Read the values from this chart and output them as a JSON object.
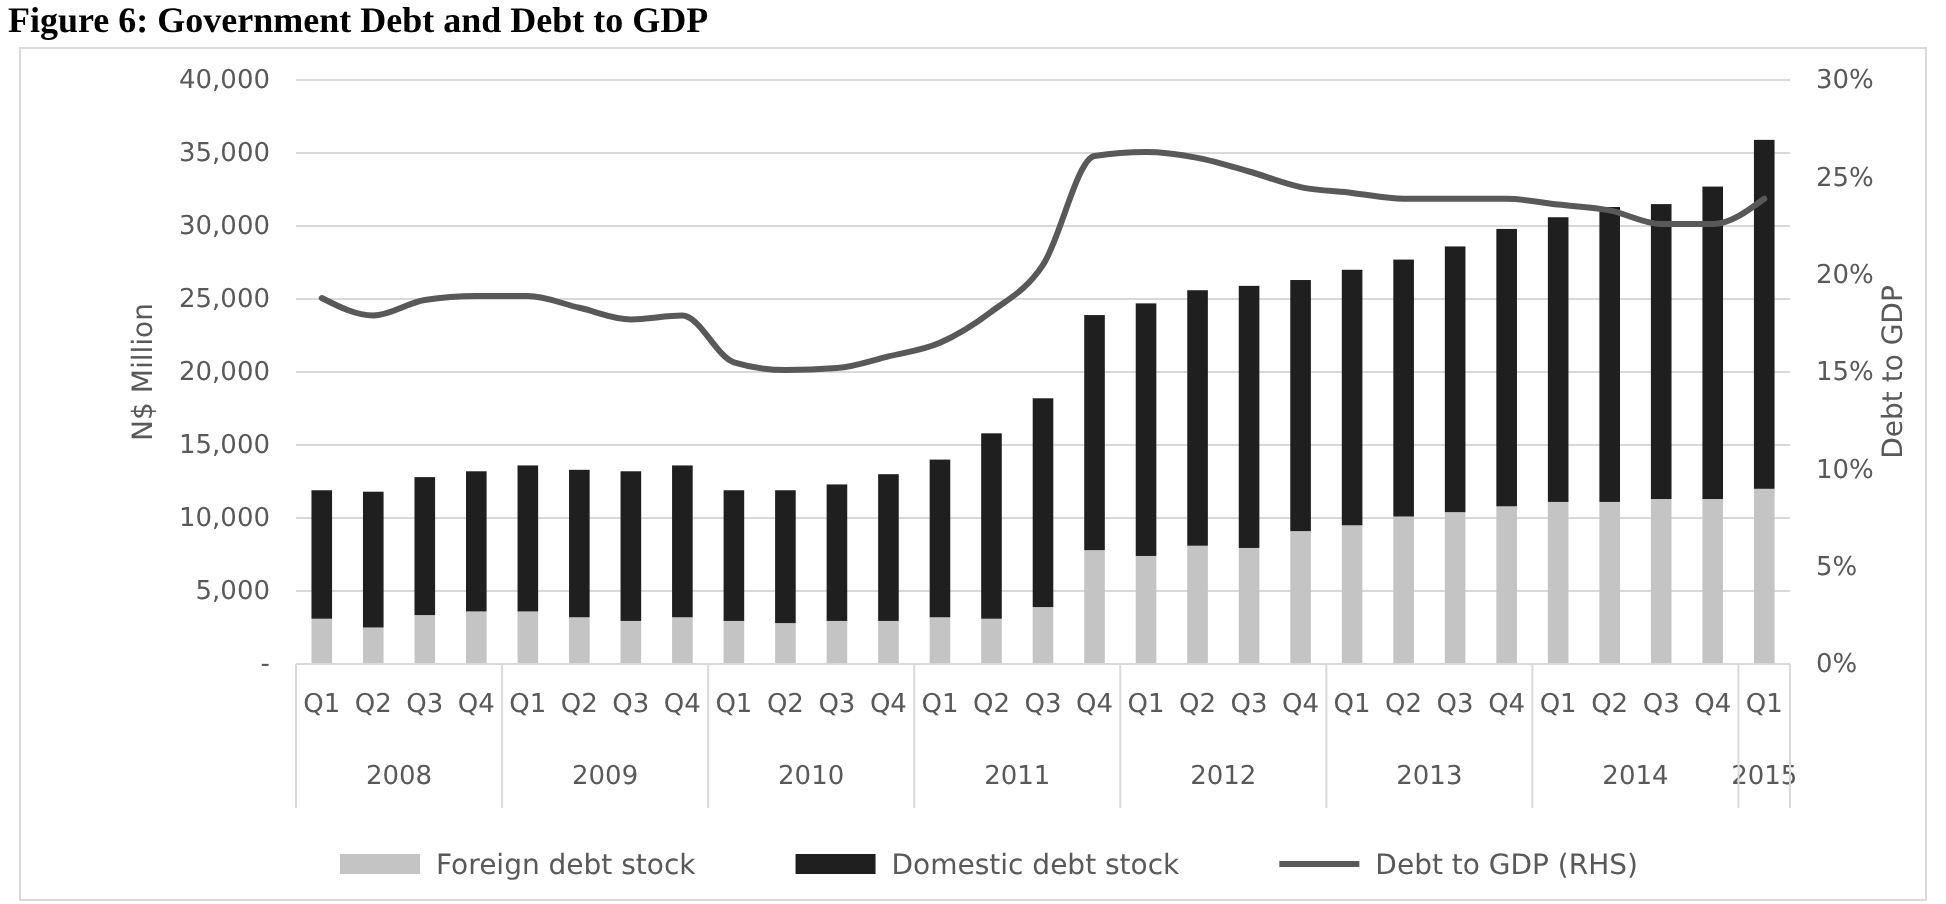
{
  "chart_data": {
    "type": "bar",
    "title": "Figure 6: Government Debt and Debt to GDP",
    "ylabel": "N$ Million",
    "y2label": "Debt to GDP",
    "categories": [
      "Q1",
      "Q2",
      "Q3",
      "Q4",
      "Q1",
      "Q2",
      "Q3",
      "Q4",
      "Q1",
      "Q2",
      "Q3",
      "Q4",
      "Q1",
      "Q2",
      "Q3",
      "Q4",
      "Q1",
      "Q2",
      "Q3",
      "Q4",
      "Q1",
      "Q2",
      "Q3",
      "Q4",
      "Q1",
      "Q2",
      "Q3",
      "Q4",
      "Q1"
    ],
    "annotations": [
      "2008",
      "2009",
      "2010",
      "2011",
      "2012",
      "2013",
      "2014",
      "2015"
    ],
    "stacked": true,
    "series": [
      {
        "name": "Foreign debt stock",
        "color": "#c4c4c4",
        "values": [
          3100,
          2500,
          3350,
          3600,
          3600,
          3200,
          2950,
          3200,
          2950,
          2800,
          2950,
          2950,
          3200,
          3100,
          3900,
          7800,
          7400,
          8100,
          7950,
          9100,
          9500,
          10100,
          10400,
          10800,
          11100,
          11100,
          11300,
          11300,
          12000
        ]
      },
      {
        "name": "Domestic debt stock",
        "color": "#1f1f1f",
        "values": [
          8800,
          9300,
          9450,
          9600,
          10000,
          10100,
          10250,
          10400,
          8950,
          9100,
          9350,
          10050,
          10800,
          12700,
          14300,
          16100,
          17300,
          17500,
          17950,
          17200,
          17500,
          17600,
          18200,
          19000,
          19500,
          20200,
          20200,
          21400,
          23900
        ]
      },
      {
        "name": "Debt to GDP (RHS)",
        "type": "line",
        "axis": "y2",
        "color": "#595959",
        "values": [
          18.8,
          17.9,
          18.7,
          18.9,
          18.9,
          18.3,
          17.7,
          17.9,
          15.5,
          15.1,
          15.2,
          15.8,
          16.5,
          18.1,
          20.5,
          26.1,
          26.3,
          26.0,
          25.3,
          24.5,
          24.2,
          23.9,
          23.9,
          23.9,
          23.6,
          23.3,
          22.6,
          22.6,
          23.9
        ]
      }
    ],
    "ylim": [
      0,
      40000
    ],
    "yticks": [
      {
        "value": 0,
        "label": "-"
      },
      {
        "value": 5000,
        "label": "5,000"
      },
      {
        "value": 10000,
        "label": "10,000"
      },
      {
        "value": 15000,
        "label": "15,000"
      },
      {
        "value": 20000,
        "label": "20,000"
      },
      {
        "value": 25000,
        "label": "25,000"
      },
      {
        "value": 30000,
        "label": "30,000"
      },
      {
        "value": 35000,
        "label": "35,000"
      },
      {
        "value": 40000,
        "label": "40,000"
      }
    ],
    "y2lim": [
      0,
      30
    ],
    "y2ticks": [
      {
        "value": 0,
        "label": "0%"
      },
      {
        "value": 5,
        "label": "5%"
      },
      {
        "value": 10,
        "label": "10%"
      },
      {
        "value": 15,
        "label": "15%"
      },
      {
        "value": 20,
        "label": "20%"
      },
      {
        "value": 25,
        "label": "25%"
      },
      {
        "value": 30,
        "label": "30%"
      }
    ],
    "grid": "y",
    "legend": "bottom"
  }
}
